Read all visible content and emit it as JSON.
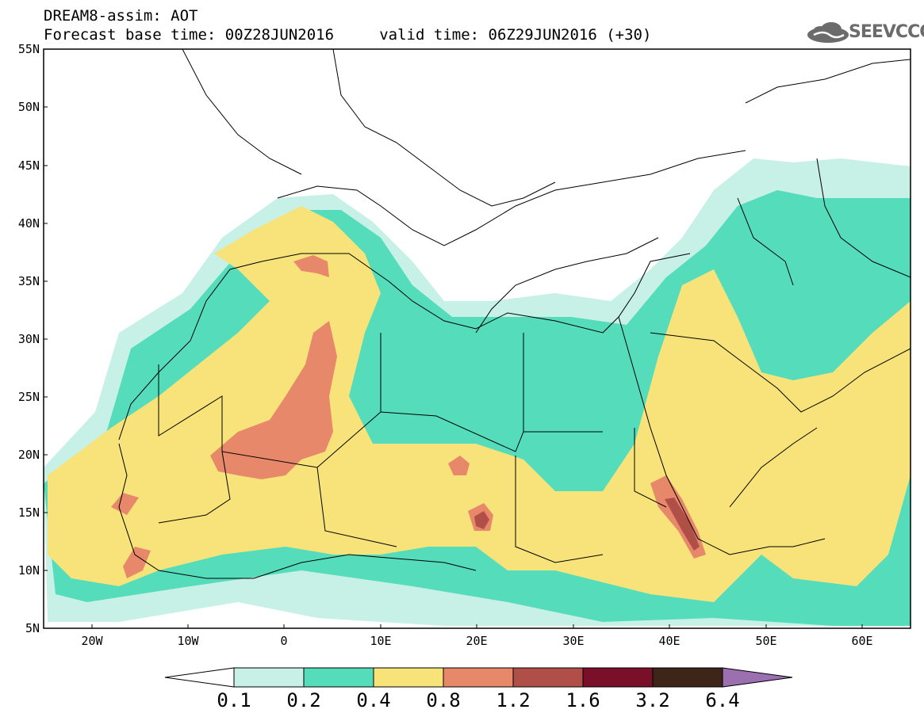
{
  "title": {
    "line1": "DREAM8-assim: AOT",
    "line2": "Forecast base time: 00Z28JUN2016     valid time: 06Z29JUN2016 (+30)"
  },
  "logo": {
    "text": "SEEVCCC",
    "icon": "cloud-icon"
  },
  "axes": {
    "lat_labels": [
      "55N",
      "50N",
      "45N",
      "40N",
      "35N",
      "30N",
      "25N",
      "20N",
      "15N",
      "10N",
      "5N"
    ],
    "lon_labels": [
      "20W",
      "10W",
      "0",
      "10E",
      "20E",
      "30E",
      "40E",
      "50E",
      "60E"
    ]
  },
  "colorbar": {
    "labels": [
      "0.1",
      "0.2",
      "0.4",
      "0.8",
      "1.2",
      "1.6",
      "3.2",
      "6.4"
    ],
    "colors": [
      "#ffffff",
      "#c7f0e6",
      "#55ddbb",
      "#f7e37a",
      "#e8886a",
      "#b04f48",
      "#7a0f2a",
      "#3d2617",
      "#9c6fb0"
    ]
  }
}
